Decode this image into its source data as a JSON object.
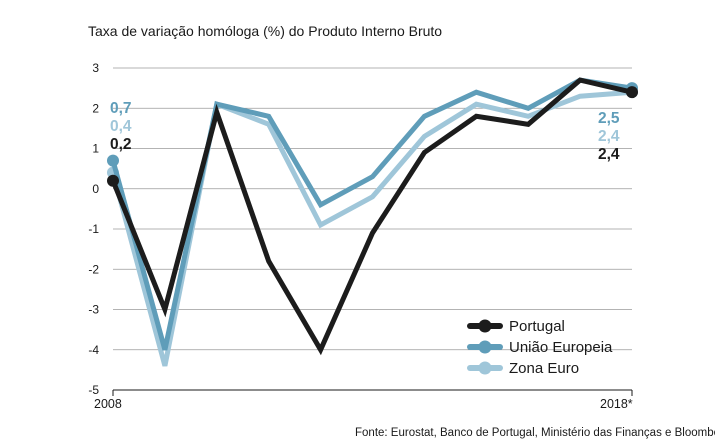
{
  "chart_data": {
    "type": "line",
    "title": "Taxa de variação homóloga (%) do Produto Interno Bruto",
    "xlabel": "",
    "ylabel": "",
    "ylim": [
      -5,
      3
    ],
    "yticks": [
      "3",
      "2",
      "1",
      "0",
      "-1",
      "-2",
      "-3",
      "-4",
      "-5"
    ],
    "x": [
      "2008",
      "2009",
      "2010",
      "2011",
      "2012",
      "2013",
      "2014",
      "2015",
      "2016",
      "2017",
      "2018*"
    ],
    "x_tick_labels": [
      "2008",
      "2018*"
    ],
    "grid": true,
    "legend_position": "bottom-right",
    "series": [
      {
        "name": "Zona Euro",
        "color": "#9fc6d9",
        "values": [
          0.4,
          -4.4,
          2.1,
          1.6,
          -0.9,
          -0.2,
          1.3,
          2.1,
          1.8,
          2.3,
          2.4
        ]
      },
      {
        "name": "União Europeia",
        "color": "#5f9db9",
        "values": [
          0.7,
          -4.0,
          2.1,
          1.8,
          -0.4,
          0.3,
          1.8,
          2.4,
          2.0,
          2.7,
          2.5
        ]
      },
      {
        "name": "Portugal",
        "color": "#1c1c1c",
        "values": [
          0.2,
          -3.0,
          1.9,
          -1.8,
          -4.0,
          -1.1,
          0.9,
          1.8,
          1.6,
          2.7,
          2.4
        ]
      }
    ],
    "start_labels": {
      "uniao_europeia": "0,7",
      "zona_euro": "0,4",
      "portugal": "0,2"
    },
    "end_labels": {
      "uniao_europeia": "2,5",
      "zona_euro": "2,4",
      "portugal": "2,4"
    }
  },
  "legend": {
    "portugal": "Portugal",
    "uniao_europeia": "União Europeia",
    "zona_euro": "Zona Euro"
  },
  "source": "Fonte: Eurostat, Banco de Portugal, Ministério das Finanças e Bloomberg"
}
